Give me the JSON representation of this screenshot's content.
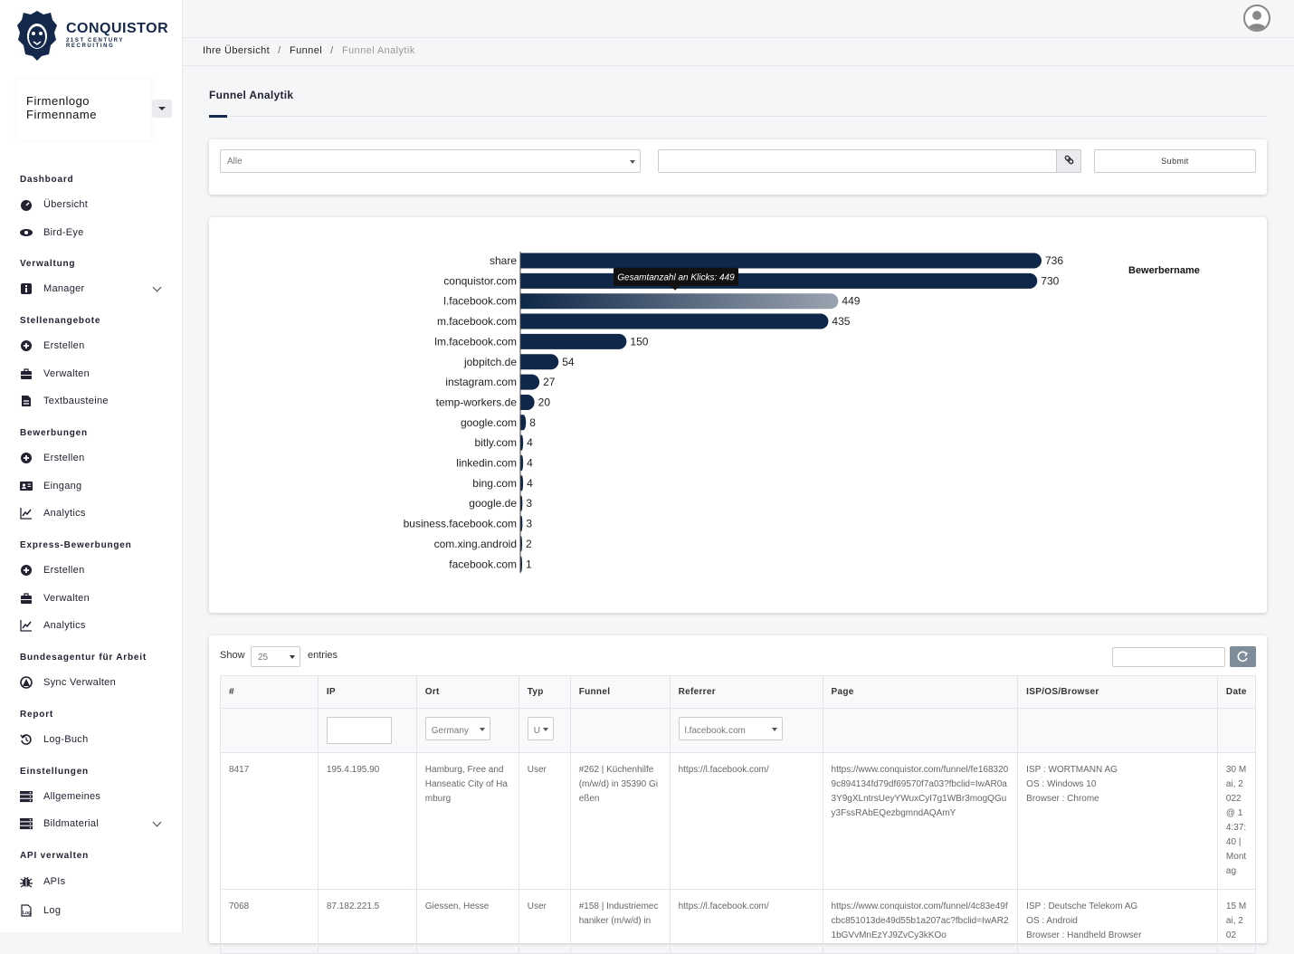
{
  "brand": {
    "name": "CONQUISTOR",
    "tagline": "21ST CENTURY RECRUITING"
  },
  "company": {
    "line1": "Firmenlogo",
    "line2": "Firmenname"
  },
  "sidebar": {
    "sections": [
      {
        "title": "Dashboard",
        "items": [
          {
            "label": "Übersicht",
            "icon": "dashboard-icon"
          },
          {
            "label": "Bird-Eye",
            "icon": "eye-icon"
          }
        ]
      },
      {
        "title": "Verwaltung",
        "items": [
          {
            "label": "Manager",
            "icon": "info-icon",
            "expandable": true
          }
        ]
      },
      {
        "title": "Stellenangebote",
        "items": [
          {
            "label": "Erstellen",
            "icon": "plus-circle-icon"
          },
          {
            "label": "Verwalten",
            "icon": "briefcase-icon"
          },
          {
            "label": "Textbausteine",
            "icon": "document-icon"
          }
        ]
      },
      {
        "title": "Bewerbungen",
        "items": [
          {
            "label": "Erstellen",
            "icon": "plus-circle-icon"
          },
          {
            "label": "Eingang",
            "icon": "id-card-icon"
          },
          {
            "label": "Analytics",
            "icon": "line-chart-icon"
          }
        ]
      },
      {
        "title": "Express-Bewerbungen",
        "items": [
          {
            "label": "Erstellen",
            "icon": "plus-circle-icon"
          },
          {
            "label": "Verwalten",
            "icon": "briefcase-icon"
          },
          {
            "label": "Analytics",
            "icon": "line-chart-icon"
          }
        ]
      },
      {
        "title": "Bundesagentur für Arbeit",
        "items": [
          {
            "label": "Sync Verwalten",
            "icon": "agency-logo-icon"
          }
        ]
      },
      {
        "title": "Report",
        "items": [
          {
            "label": "Log-Buch",
            "icon": "history-icon"
          }
        ]
      },
      {
        "title": "Einstellungen",
        "items": [
          {
            "label": "Allgemeines",
            "icon": "server-icon"
          },
          {
            "label": "Bildmaterial",
            "icon": "server-icon",
            "expandable": true
          }
        ]
      },
      {
        "title": "API verwalten",
        "items": [
          {
            "label": "APIs",
            "icon": "bug-icon"
          },
          {
            "label": "Log",
            "icon": "log-file-icon"
          }
        ]
      }
    ]
  },
  "breadcrumb": {
    "items": [
      "Ihre Übersicht",
      "Funnel"
    ],
    "current": "Funnel Analytik"
  },
  "page": {
    "title": "Funnel Analytik"
  },
  "filter": {
    "select_value": "Alle",
    "link_input_value": "",
    "submit_label": "Submit"
  },
  "chart_data": {
    "type": "bar",
    "orientation": "horizontal",
    "categories": [
      "share",
      "conquistor.com",
      "l.facebook.com",
      "m.facebook.com",
      "lm.facebook.com",
      "jobpitch.de",
      "instagram.com",
      "temp-workers.de",
      "google.com",
      "bitly.com",
      "linkedin.com",
      "bing.com",
      "google.de",
      "business.facebook.com",
      "com.xing.android",
      "facebook.com"
    ],
    "values": [
      736,
      730,
      449,
      435,
      150,
      54,
      27,
      20,
      8,
      4,
      4,
      4,
      3,
      3,
      2,
      1
    ],
    "legend": "Bewerbername",
    "legend_position": "right",
    "tooltip": {
      "category": "l.facebook.com",
      "text": "Gesamtanzahl an Klicks: 449"
    },
    "bar_color": "#0f2748",
    "highlight_color": "#9aa4b0",
    "data_labels": true
  },
  "table": {
    "show_label": "Show",
    "entries_value": "25",
    "entries_label": "entries",
    "search_value": "",
    "columns": [
      "#",
      "IP",
      "Ort",
      "Typ",
      "Funnel",
      "Referrer",
      "Page",
      "ISP/OS/Browser",
      "Date"
    ],
    "filters": {
      "ort": "Germany",
      "typ": "U",
      "referrer": "l.facebook.com"
    },
    "rows": [
      {
        "id": "8417",
        "ip": "195.4.195.90",
        "ort": "Hamburg, Free and Hanseatic City of Hamburg",
        "typ": "User",
        "funnel": "#262 | Küchenhilfe (m/w/d) in 35390 Gießen",
        "referrer": "https://l.facebook.com/",
        "page": "https://www.conquistor.com/funnel/fe1683209c894134fd79df69570f7a03?fbclid=IwAR0a3Y9gXLntrsUeyYWuxCyI7g1WBr3mogQGuy3FssRAbEQezbgmndAQAmY",
        "isp": "ISP : WORTMANN AG",
        "os": "OS : Windows 10",
        "browser": "Browser : Chrome",
        "date": "30 Mai, 2022 @ 14:37:40 | Montag"
      },
      {
        "id": "7068",
        "ip": "87.182.221.5",
        "ort": "Giessen, Hesse",
        "typ": "User",
        "funnel": "#158 | Industriemechaniker (m/w/d) in",
        "referrer": "https://l.facebook.com/",
        "page": "https://www.conquistor.com/funnel/4c83e49fcbc851013de49d55b1a207ac?fbclid=IwAR21bGVvMnEzYJ9ZvCy3kKOo",
        "isp": "ISP : Deutsche Telekom AG",
        "os": "OS : Android",
        "browser": "Browser : Handheld Browser",
        "date": "15 Mai, 202"
      }
    ]
  }
}
